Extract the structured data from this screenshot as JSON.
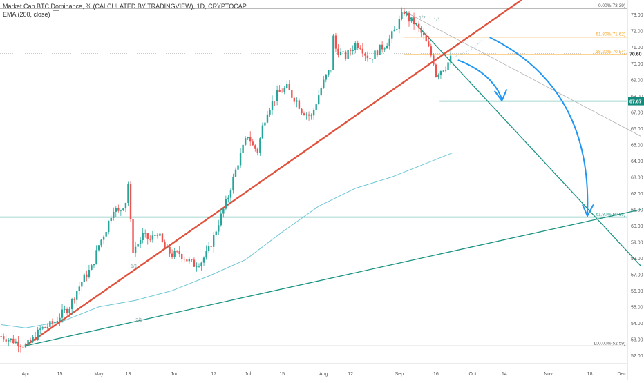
{
  "legend": {
    "title": "Market Cap BTC Dominance, % (CALCULATED BY TRADINGVIEW), 1D, CRYPTOCAP",
    "ema": "EMA (200, close)"
  },
  "colors": {
    "up": "#26a69a",
    "down": "#ef5350",
    "trend_red": "#e0523d",
    "teal_line": "#1a9283",
    "fib_orange": "#f5a623",
    "ema": "#6ec6d6",
    "arrow": "#2196f3",
    "grey": "#9e9e9e",
    "level_badge": "#138a7c"
  },
  "chart_data": {
    "type": "candlestick",
    "title": "Market Cap BTC Dominance, % (CALCULATED BY TRADINGVIEW), 1D, CRYPTOCAP",
    "ylim": [
      51.5,
      73.9
    ],
    "y_ticks": [
      "73.00",
      "72.00",
      "71.00",
      "70.00",
      "69.00",
      "68.00",
      "67.00",
      "66.00",
      "65.00",
      "64.00",
      "63.00",
      "62.00",
      "61.00",
      "60.00",
      "59.00",
      "58.00",
      "57.00",
      "56.00",
      "55.00",
      "54.00",
      "53.00",
      "52.00"
    ],
    "x_ticks": [
      {
        "label": "Apr",
        "day": 0
      },
      {
        "label": "15",
        "day": 14
      },
      {
        "label": "May",
        "day": 30
      },
      {
        "label": "13",
        "day": 42
      },
      {
        "label": "Jun",
        "day": 61
      },
      {
        "label": "17",
        "day": 77
      },
      {
        "label": "Jul",
        "day": 91
      },
      {
        "label": "15",
        "day": 105
      },
      {
        "label": "Aug",
        "day": 122
      },
      {
        "label": "12",
        "day": 133
      },
      {
        "label": "Sep",
        "day": 153
      },
      {
        "label": "16",
        "day": 168
      },
      {
        "label": "Oct",
        "day": 183
      },
      {
        "label": "14",
        "day": 196
      },
      {
        "label": "Nov",
        "day": 214
      },
      {
        "label": "18",
        "day": 231
      },
      {
        "label": "Dec",
        "day": 244
      }
    ],
    "close_anchors": [
      [
        -10,
        53.2
      ],
      [
        0,
        52.6
      ],
      [
        3,
        53.0
      ],
      [
        6,
        53.6
      ],
      [
        9,
        53.8
      ],
      [
        12,
        54.1
      ],
      [
        15,
        54.6
      ],
      [
        18,
        55.0
      ],
      [
        21,
        56.0
      ],
      [
        24,
        56.8
      ],
      [
        27,
        57.4
      ],
      [
        30,
        58.8
      ],
      [
        33,
        59.8
      ],
      [
        36,
        61.1
      ],
      [
        38,
        60.8
      ],
      [
        41,
        61.5
      ],
      [
        42,
        62.6
      ],
      [
        43,
        60.2
      ],
      [
        44,
        58.5
      ],
      [
        46,
        58.9
      ],
      [
        48,
        59.4
      ],
      [
        51,
        59.1
      ],
      [
        54,
        59.6
      ],
      [
        57,
        58.6
      ],
      [
        60,
        58.2
      ],
      [
        63,
        58.3
      ],
      [
        66,
        57.9
      ],
      [
        69,
        57.6
      ],
      [
        72,
        57.8
      ],
      [
        75,
        58.5
      ],
      [
        77,
        59.3
      ],
      [
        79,
        60.2
      ],
      [
        81,
        61.0
      ],
      [
        83,
        61.8
      ],
      [
        85,
        62.9
      ],
      [
        87,
        63.9
      ],
      [
        89,
        64.8
      ],
      [
        91,
        65.6
      ],
      [
        93,
        64.9
      ],
      [
        95,
        64.6
      ],
      [
        97,
        66.1
      ],
      [
        99,
        67.1
      ],
      [
        101,
        67.6
      ],
      [
        103,
        68.1
      ],
      [
        105,
        68.3
      ],
      [
        107,
        68.5
      ],
      [
        109,
        68.0
      ],
      [
        111,
        67.7
      ],
      [
        113,
        67.1
      ],
      [
        115,
        66.9
      ],
      [
        117,
        66.7
      ],
      [
        119,
        67.6
      ],
      [
        121,
        68.5
      ],
      [
        123,
        69.2
      ],
      [
        125,
        69.7
      ],
      [
        126,
        71.6
      ],
      [
        127,
        70.9
      ],
      [
        129,
        70.6
      ],
      [
        131,
        70.4
      ],
      [
        133,
        70.8
      ],
      [
        135,
        71.2
      ],
      [
        137,
        71.1
      ],
      [
        139,
        70.6
      ],
      [
        141,
        70.3
      ],
      [
        143,
        70.6
      ],
      [
        145,
        70.9
      ],
      [
        147,
        71.1
      ],
      [
        149,
        71.5
      ],
      [
        151,
        72.0
      ],
      [
        153,
        72.6
      ],
      [
        155,
        73.2
      ],
      [
        157,
        72.7
      ],
      [
        159,
        72.5
      ],
      [
        161,
        72.1
      ],
      [
        163,
        71.6
      ],
      [
        165,
        70.9
      ],
      [
        167,
        70.1
      ],
      [
        168,
        69.3
      ],
      [
        170,
        69.6
      ],
      [
        172,
        69.8
      ],
      [
        174,
        70.3
      ]
    ],
    "ema": {
      "label": "EMA (200, close)",
      "points": [
        [
          -10,
          53.9
        ],
        [
          0,
          53.7
        ],
        [
          15,
          54.1
        ],
        [
          30,
          55.0
        ],
        [
          45,
          55.4
        ],
        [
          60,
          56.0
        ],
        [
          75,
          56.9
        ],
        [
          90,
          57.9
        ],
        [
          105,
          59.6
        ],
        [
          120,
          61.2
        ],
        [
          135,
          62.3
        ],
        [
          150,
          63.0
        ],
        [
          160,
          63.6
        ],
        [
          170,
          64.2
        ],
        [
          175,
          64.5
        ]
      ]
    },
    "fibonacci_levels": [
      {
        "label": "0.00%(73.39)",
        "value": 73.39
      },
      {
        "label": "61.80%(71.62)",
        "value": 71.62
      },
      {
        "label": "38.20%(70.54)",
        "value": 70.54
      },
      {
        "label": "61.80%(60.53)",
        "value": 60.53
      },
      {
        "label": "100.00%(52.59)",
        "value": 52.59
      }
    ],
    "current_price_label": "70.60",
    "current_price": 70.6,
    "highlighted_level": "67.67",
    "highlighted_level_value": 67.67,
    "trendlines": [
      {
        "name": "red-support",
        "from": [
          0,
          52.6
        ],
        "to": [
          203,
          73.9
        ]
      },
      {
        "name": "teal-long-support",
        "from": [
          0,
          52.6
        ],
        "to": [
          252,
          61.0
        ]
      },
      {
        "name": "teal-descending",
        "from": [
          155,
          73.2
        ],
        "to": [
          252,
          57.5
        ]
      },
      {
        "name": "grey-descending",
        "from": [
          155,
          73.2
        ],
        "to": [
          252,
          65.5
        ]
      }
    ],
    "horizontal_lines": [
      {
        "name": "teal-60.53",
        "value": 60.53,
        "from": 0,
        "to": 252
      },
      {
        "name": "teal-67.67",
        "value": 67.67,
        "from": 180,
        "to": 252
      },
      {
        "name": "grey-52.59",
        "value": 52.59,
        "from": 0,
        "to": 252
      },
      {
        "name": "grey-73.39",
        "value": 73.39,
        "from": 0,
        "to": 252
      }
    ],
    "fan_labels": [
      {
        "text": "1/2",
        "day": 161,
        "value": 72.7
      },
      {
        "text": "1/1",
        "day": 167,
        "value": 72.6
      },
      {
        "text": "1/1",
        "day": 43,
        "value": 57.4
      },
      {
        "text": "2/1",
        "day": 45,
        "value": 54.1
      }
    ]
  }
}
